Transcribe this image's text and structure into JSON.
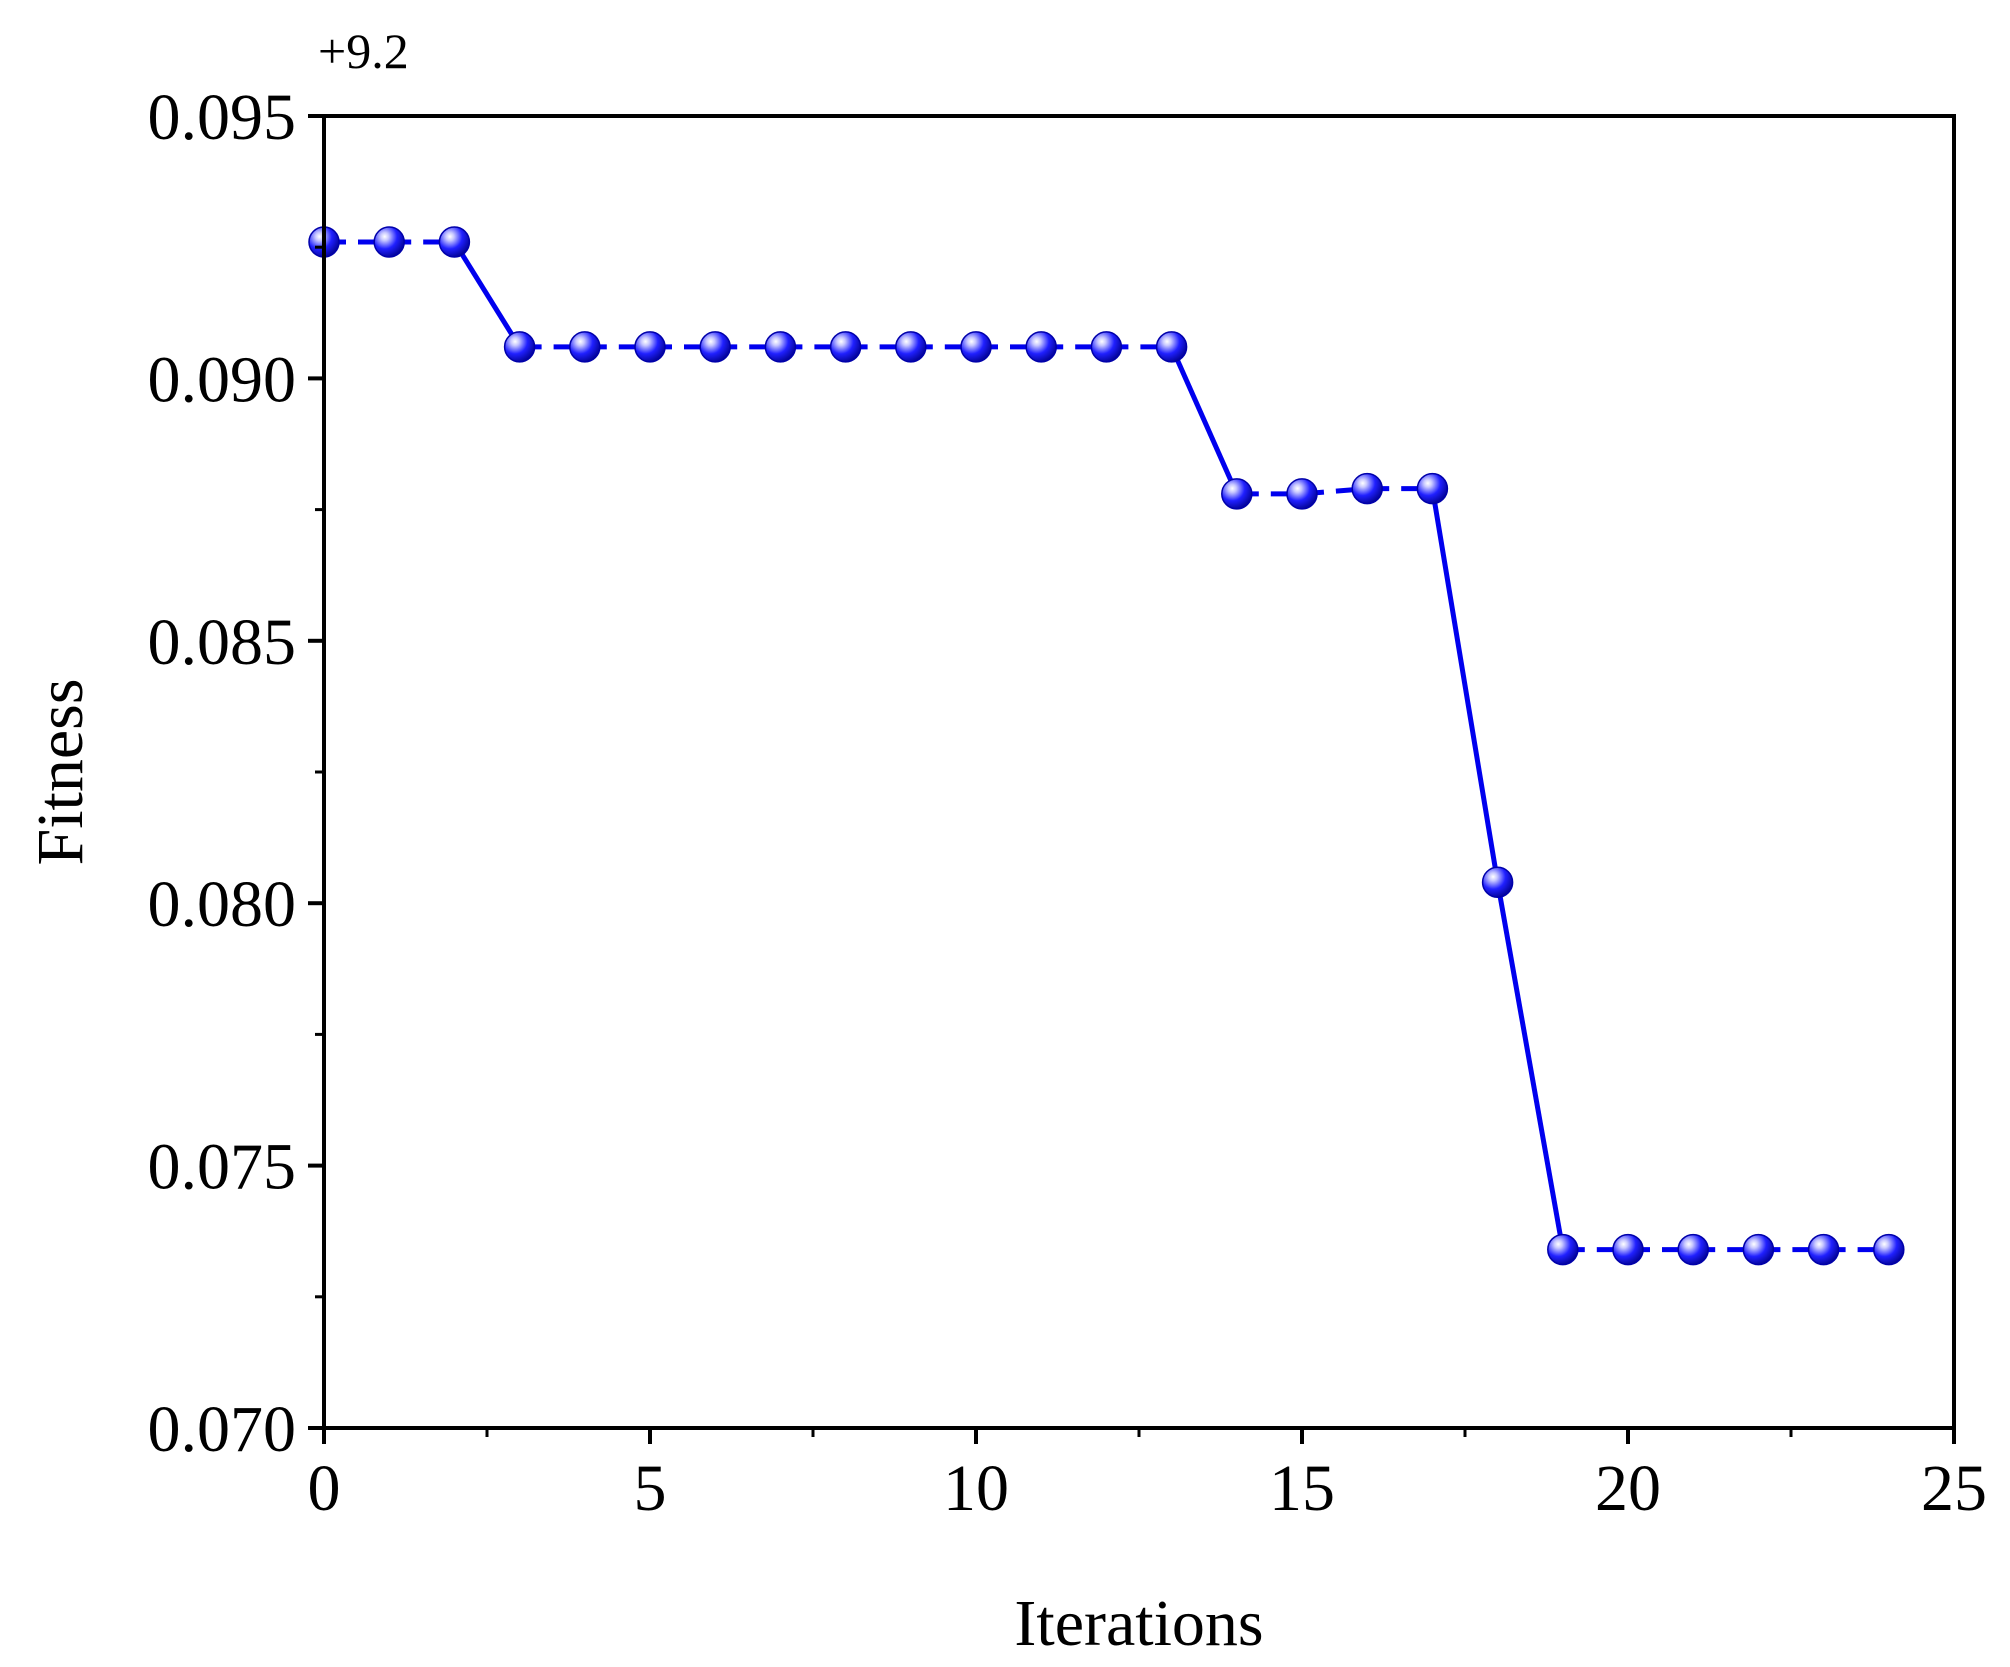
{
  "chart_data": {
    "type": "line",
    "xlabel": "Iterations",
    "ylabel": "Fitness",
    "y_offset_label": "+9.2",
    "xlim": [
      0,
      25
    ],
    "ylim": [
      0.07,
      0.095
    ],
    "x_ticks": [
      "0",
      "5",
      "10",
      "15",
      "20",
      "25"
    ],
    "y_ticks": [
      "0.070",
      "0.075",
      "0.080",
      "0.085",
      "0.090",
      "0.095"
    ],
    "grid": false,
    "legend": "none",
    "series": [
      {
        "color": "#0000ee",
        "marker": "sphere",
        "line_style": "dashed segments with solid transitions",
        "x": [
          0,
          1,
          2,
          3,
          4,
          5,
          6,
          7,
          8,
          9,
          10,
          11,
          12,
          13,
          14,
          15,
          16,
          17,
          18,
          19,
          20,
          21,
          22,
          23,
          24
        ],
        "y": [
          0.0926,
          0.0926,
          0.0926,
          0.0906,
          0.0906,
          0.0906,
          0.0906,
          0.0906,
          0.0906,
          0.0906,
          0.0906,
          0.0906,
          0.0906,
          0.0906,
          0.0878,
          0.0878,
          0.0879,
          0.0879,
          0.0804,
          0.0734,
          0.0734,
          0.0734,
          0.0734,
          0.0734,
          0.0734
        ]
      }
    ]
  }
}
